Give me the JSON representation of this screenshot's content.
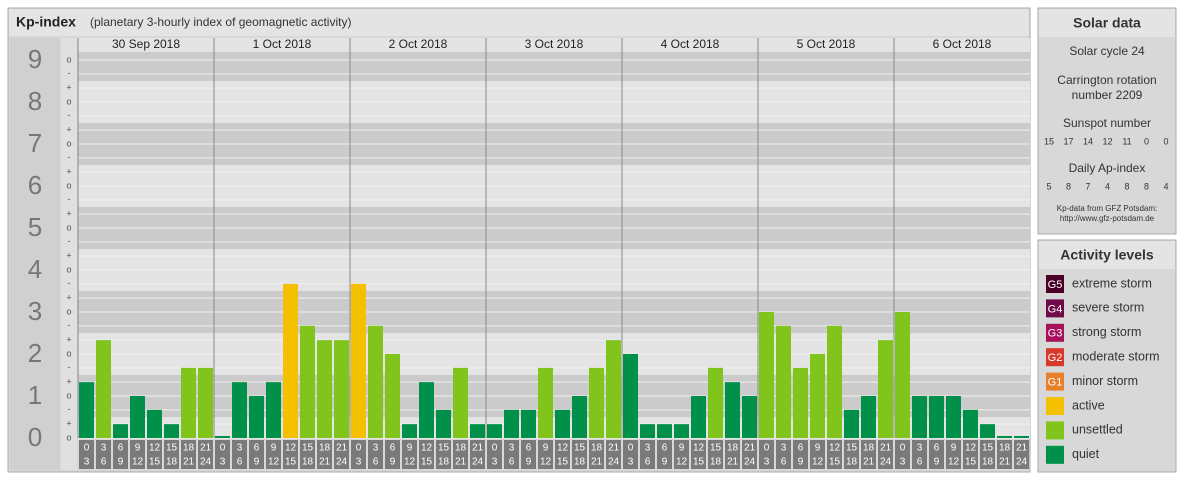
{
  "chart_data": {
    "type": "bar",
    "title": "Kp-index",
    "subtitle": "(planetary 3-hourly index of geomagnetic activity)",
    "ylim": [
      0,
      9.2
    ],
    "yticks": [
      0,
      1,
      2,
      3,
      4,
      5,
      6,
      7,
      8,
      9
    ],
    "grid": true,
    "minor_ticks": [
      {
        "value": 9,
        "label": "o"
      },
      {
        "value": 8.67,
        "label": "-"
      },
      {
        "value": 8.33,
        "label": "+"
      },
      {
        "value": 8,
        "label": "o"
      },
      {
        "value": 7.67,
        "label": "-"
      },
      {
        "value": 7.33,
        "label": "+"
      },
      {
        "value": 7,
        "label": "o"
      },
      {
        "value": 6.67,
        "label": "-"
      },
      {
        "value": 6.33,
        "label": "+"
      },
      {
        "value": 6,
        "label": "o"
      },
      {
        "value": 5.67,
        "label": "-"
      },
      {
        "value": 5.33,
        "label": "+"
      },
      {
        "value": 5,
        "label": "o"
      },
      {
        "value": 4.67,
        "label": "-"
      },
      {
        "value": 4.33,
        "label": "+"
      },
      {
        "value": 4,
        "label": "o"
      },
      {
        "value": 3.67,
        "label": "-"
      },
      {
        "value": 3.33,
        "label": "+"
      },
      {
        "value": 3,
        "label": "o"
      },
      {
        "value": 2.67,
        "label": "-"
      },
      {
        "value": 2.33,
        "label": "+"
      },
      {
        "value": 2,
        "label": "o"
      },
      {
        "value": 1.67,
        "label": "-"
      },
      {
        "value": 1.33,
        "label": "+"
      },
      {
        "value": 1,
        "label": "o"
      },
      {
        "value": 0.67,
        "label": "-"
      },
      {
        "value": 0.33,
        "label": "+"
      },
      {
        "value": 0,
        "label": "o"
      }
    ],
    "hours": [
      [
        "0",
        "3"
      ],
      [
        "3",
        "6"
      ],
      [
        "6",
        "9"
      ],
      [
        "9",
        "12"
      ],
      [
        "12",
        "15"
      ],
      [
        "15",
        "18"
      ],
      [
        "18",
        "21"
      ],
      [
        "21",
        "24"
      ]
    ],
    "days": [
      {
        "date": "30 Sep 2018",
        "values": [
          1.33,
          2.33,
          0.33,
          1,
          0.67,
          0.33,
          1.67,
          1.67
        ],
        "colors": [
          "#00904a",
          "#80c41c",
          "#00904a",
          "#00904a",
          "#00904a",
          "#00904a",
          "#80c41c",
          "#80c41c"
        ]
      },
      {
        "date": "1 Oct 2018",
        "values": [
          0,
          1.33,
          1,
          1.33,
          3.67,
          2.67,
          2.33,
          2.33
        ],
        "colors": [
          "#00904a",
          "#00904a",
          "#00904a",
          "#00904a",
          "#f5c000",
          "#80c41c",
          "#80c41c",
          "#80c41c"
        ]
      },
      {
        "date": "2 Oct 2018",
        "values": [
          3.67,
          2.67,
          2,
          0.33,
          1.33,
          0.67,
          1.67,
          0.33
        ],
        "colors": [
          "#f5c000",
          "#80c41c",
          "#80c41c",
          "#00904a",
          "#00904a",
          "#00904a",
          "#80c41c",
          "#00904a"
        ]
      },
      {
        "date": "3 Oct 2018",
        "values": [
          0.33,
          0.67,
          0.67,
          1.67,
          0.67,
          1,
          1.67,
          2.33
        ],
        "colors": [
          "#00904a",
          "#00904a",
          "#00904a",
          "#80c41c",
          "#00904a",
          "#00904a",
          "#80c41c",
          "#80c41c"
        ]
      },
      {
        "date": "4 Oct 2018",
        "values": [
          2,
          0.33,
          0.33,
          0.33,
          1,
          1.67,
          1.33,
          1
        ],
        "colors": [
          "#00904a",
          "#00904a",
          "#00904a",
          "#00904a",
          "#00904a",
          "#80c41c",
          "#00904a",
          "#00904a"
        ]
      },
      {
        "date": "5 Oct 2018",
        "values": [
          3,
          2.67,
          1.67,
          2,
          2.67,
          0.67,
          1,
          2.33
        ],
        "colors": [
          "#80c41c",
          "#80c41c",
          "#80c41c",
          "#80c41c",
          "#80c41c",
          "#00904a",
          "#00904a",
          "#80c41c"
        ]
      },
      {
        "date": "6 Oct 2018",
        "values": [
          3,
          1,
          1,
          1,
          0.67,
          0.33,
          0,
          0
        ],
        "colors": [
          "#80c41c",
          "#00904a",
          "#00904a",
          "#00904a",
          "#00904a",
          "#00904a",
          "#00904a",
          "#00904a"
        ]
      }
    ]
  },
  "solar_data": {
    "title": "Solar data",
    "cycle": "Solar cycle 24",
    "carrington": [
      "Carrington rotation",
      "number 2209"
    ],
    "sunspot_title": "Sunspot number",
    "sunspot": [
      15,
      17,
      14,
      12,
      11,
      0,
      0
    ],
    "ap_title": "Daily Ap-index",
    "ap": [
      5,
      8,
      7,
      4,
      8,
      8,
      4
    ],
    "source": [
      "Kp-data from GFZ Potsdam:",
      "http://www.gfz-potsdam.de"
    ]
  },
  "activity_levels": {
    "title": "Activity levels",
    "items": [
      {
        "code": "G5",
        "label": "extreme storm",
        "color": "#4a0026"
      },
      {
        "code": "G4",
        "label": "severe storm",
        "color": "#6e0a48"
      },
      {
        "code": "G3",
        "label": "strong storm",
        "color": "#a8105a"
      },
      {
        "code": "G2",
        "label": "moderate storm",
        "color": "#d8382a"
      },
      {
        "code": "G1",
        "label": "minor storm",
        "color": "#e8802a"
      },
      {
        "label": "active",
        "color": "#f5c000"
      },
      {
        "label": "unsettled",
        "color": "#80c41c"
      },
      {
        "label": "quiet",
        "color": "#00904a"
      }
    ]
  }
}
